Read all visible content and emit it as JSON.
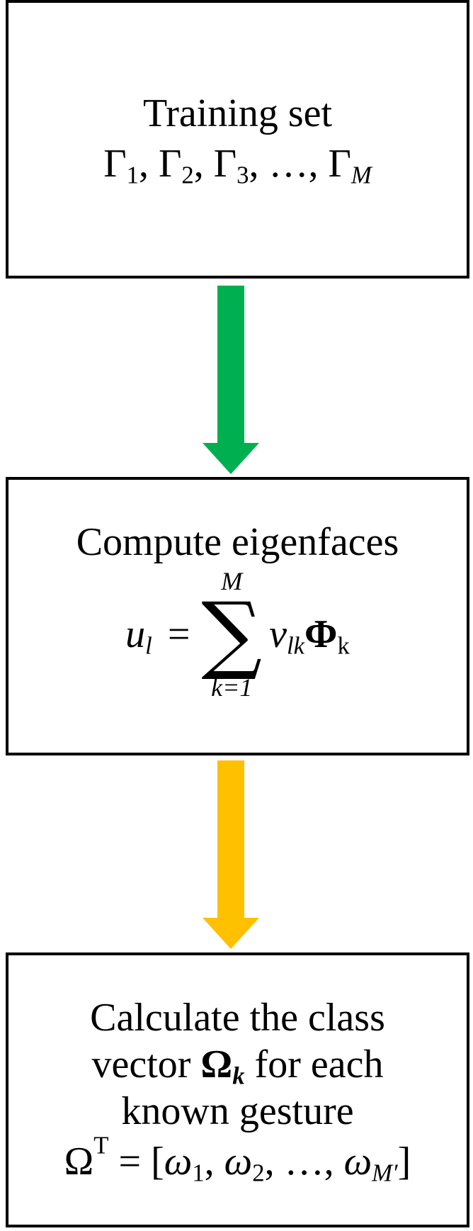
{
  "colors": {
    "arrow_1": "#00b050",
    "arrow_2": "#ffc000",
    "border": "#000000"
  },
  "boxes": {
    "training": {
      "title": "Training set",
      "formula": {
        "g1": "Γ",
        "s1": "1",
        "g2": "Γ",
        "s2": "2",
        "g3": "Γ",
        "s3": "3",
        "dots": "…",
        "g4": "Γ",
        "s4": "M"
      }
    },
    "eigenfaces": {
      "title": "Compute eigenfaces",
      "formula": {
        "u": "u",
        "u_sub": "l",
        "eq": "=",
        "sum_upper": "M",
        "sum_sign": "∑",
        "sum_lower": "k=1",
        "v": "v",
        "v_sub": "lk",
        "phi": "Φ",
        "phi_sub": "k"
      }
    },
    "class_vector": {
      "line1": "Calculate the class",
      "line2_pre": "vector ",
      "omega_bold": "Ω",
      "omega_bold_sub": "k",
      "line2_post": " for each",
      "line3": "known gesture",
      "formula": {
        "omega": "Ω",
        "sup_T": "T",
        "eq": "=",
        "open": "[",
        "w1": "ω",
        "w1_sub": "1",
        "w2": "ω",
        "w2_sub": "2",
        "dots": "…",
        "w3": "ω",
        "w3_sub": "M′",
        "close": "]"
      }
    }
  }
}
